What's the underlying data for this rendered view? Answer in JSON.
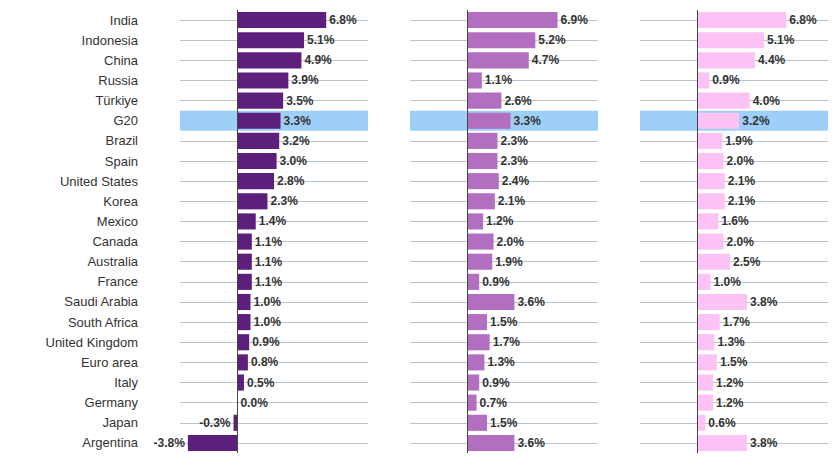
{
  "chart_data": [
    {
      "type": "bar",
      "orientation": "horizontal",
      "data_labels": true,
      "grid": true,
      "tick_labels": "y",
      "highlight": "G20",
      "color": "#5c1f7b",
      "xlim": [
        -4.4,
        10
      ],
      "categories": [
        "India",
        "Indonesia",
        "China",
        "Russia",
        "Türkiye",
        "G20",
        "Brazil",
        "Spain",
        "United States",
        "Korea",
        "Mexico",
        "Canada",
        "Australia",
        "France",
        "Saudi Arabia",
        "South Africa",
        "United Kingdom",
        "Euro area",
        "Italy",
        "Germany",
        "Japan",
        "Argentina"
      ],
      "values": [
        6.8,
        5.1,
        4.9,
        3.9,
        3.5,
        3.3,
        3.2,
        3.0,
        2.8,
        2.3,
        1.4,
        1.1,
        1.1,
        1.1,
        1.0,
        1.0,
        0.9,
        0.8,
        0.5,
        0.0,
        -0.3,
        -3.8
      ],
      "value_labels": [
        "6.8%",
        "5.1%",
        "4.9%",
        "3.9%",
        "3.5%",
        "3.3%",
        "3.2%",
        "3.0%",
        "2.8%",
        "2.3%",
        "1.4%",
        "1.1%",
        "1.1%",
        "1.1%",
        "1.0%",
        "1.0%",
        "0.9%",
        "0.8%",
        "0.5%",
        "0.0%",
        "-0.3%",
        "-3.8%"
      ]
    },
    {
      "type": "bar",
      "orientation": "horizontal",
      "data_labels": true,
      "grid": true,
      "tick_labels": false,
      "highlight": "G20",
      "color": "#b26fbf",
      "xlim": [
        -4.4,
        10
      ],
      "categories": [
        "India",
        "Indonesia",
        "China",
        "Russia",
        "Türkiye",
        "G20",
        "Brazil",
        "Spain",
        "United States",
        "Korea",
        "Mexico",
        "Canada",
        "Australia",
        "France",
        "Saudi Arabia",
        "South Africa",
        "United Kingdom",
        "Euro area",
        "Italy",
        "Germany",
        "Japan",
        "Argentina"
      ],
      "values": [
        6.9,
        5.2,
        4.7,
        1.1,
        2.6,
        3.3,
        2.3,
        2.3,
        2.4,
        2.1,
        1.2,
        2.0,
        1.9,
        0.9,
        3.6,
        1.5,
        1.7,
        1.3,
        0.9,
        0.7,
        1.5,
        3.6
      ],
      "value_labels": [
        "6.9%",
        "5.2%",
        "4.7%",
        "1.1%",
        "2.6%",
        "3.3%",
        "2.3%",
        "2.3%",
        "2.4%",
        "2.1%",
        "1.2%",
        "2.0%",
        "1.9%",
        "0.9%",
        "3.6%",
        "1.5%",
        "1.7%",
        "1.3%",
        "0.9%",
        "0.7%",
        "1.5%",
        "3.6%"
      ]
    },
    {
      "type": "bar",
      "orientation": "horizontal",
      "data_labels": true,
      "grid": true,
      "tick_labels": false,
      "highlight": "G20",
      "color": "#fcc3f4",
      "xlim": [
        -4.4,
        10
      ],
      "categories": [
        "India",
        "Indonesia",
        "China",
        "Russia",
        "Türkiye",
        "G20",
        "Brazil",
        "Spain",
        "United States",
        "Korea",
        "Mexico",
        "Canada",
        "Australia",
        "France",
        "Saudi Arabia",
        "South Africa",
        "United Kingdom",
        "Euro area",
        "Italy",
        "Germany",
        "Japan",
        "Argentina"
      ],
      "values": [
        6.8,
        5.1,
        4.4,
        0.9,
        4.0,
        3.2,
        1.9,
        2.0,
        2.1,
        2.1,
        1.6,
        2.0,
        2.5,
        1.0,
        3.8,
        1.7,
        1.3,
        1.5,
        1.2,
        1.2,
        0.6,
        3.8
      ],
      "value_labels": [
        "6.8%",
        "5.1%",
        "4.4%",
        "0.9%",
        "4.0%",
        "3.2%",
        "1.9%",
        "2.0%",
        "2.1%",
        "2.1%",
        "1.6%",
        "2.0%",
        "2.5%",
        "1.0%",
        "3.8%",
        "1.7%",
        "1.3%",
        "1.5%",
        "1.2%",
        "1.2%",
        "0.6%",
        "3.8%"
      ]
    }
  ]
}
